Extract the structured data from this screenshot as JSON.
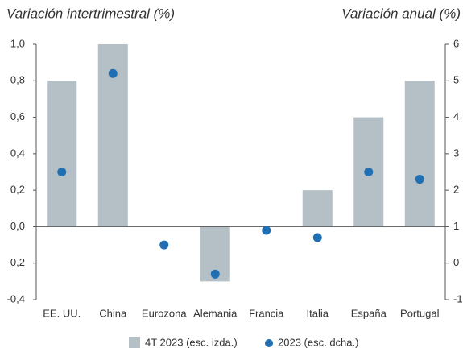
{
  "chart_data": {
    "type": "bar_dot",
    "title_left": "Variación intertrimestral (%)",
    "title_right": "Variación anual (%)",
    "categories": [
      "EE. UU.",
      "China",
      "Eurozona",
      "Alemania",
      "Francia",
      "Italia",
      "España",
      "Portugal"
    ],
    "series": [
      {
        "name": "4T 2023 (esc. izda.)",
        "color": "#b4c0c6",
        "axis": "y",
        "values": [
          0.8,
          1.0,
          0.0,
          -0.3,
          0.0,
          0.2,
          0.6,
          0.8
        ]
      },
      {
        "name": "2023 (esc. dcha.)",
        "color": "#1f6fb2",
        "axis": "y2",
        "values": [
          2.5,
          5.2,
          0.5,
          -0.3,
          0.9,
          0.7,
          2.5,
          2.3
        ]
      }
    ],
    "ylim": [
      -0.4,
      1.0
    ],
    "yticks": [
      {
        "value": 1.0,
        "label": "1,0"
      },
      {
        "value": 0.8,
        "label": "0,8"
      },
      {
        "value": 0.6,
        "label": "0,6"
      },
      {
        "value": 0.4,
        "label": "0,4"
      },
      {
        "value": 0.2,
        "label": "0,2"
      },
      {
        "value": 0.0,
        "label": "0,0"
      },
      {
        "value": -0.2,
        "label": "-0,2"
      },
      {
        "value": -0.4,
        "label": "-0,4"
      }
    ],
    "y2lim": [
      -1,
      6
    ],
    "y2ticks": [
      6,
      5,
      4,
      3,
      2,
      1,
      0,
      -1
    ]
  }
}
